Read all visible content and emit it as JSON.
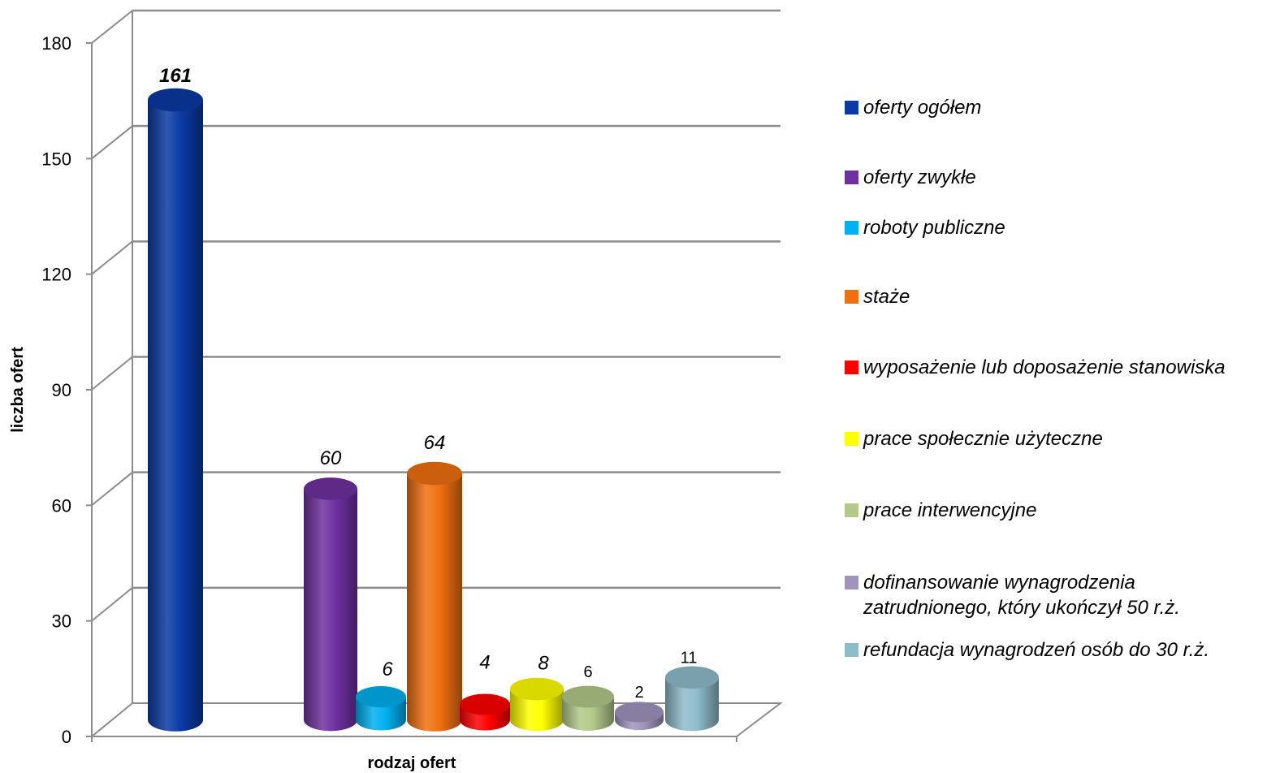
{
  "chart_data": {
    "type": "bar",
    "style": "3d-cylinder",
    "ylabel": "liczba ofert",
    "xlabel": "rodzaj ofert",
    "ylim": [
      0,
      180
    ],
    "yticks": [
      0,
      30,
      60,
      90,
      120,
      150,
      180
    ],
    "grid": true,
    "legend_position": "right",
    "series": [
      {
        "name": "oferty ogółem",
        "value": 161,
        "label": "161",
        "color": "#0a3aa4",
        "label_bold": true
      },
      {
        "name": "oferty zwykłe",
        "value": 60,
        "label": "60",
        "color": "#7030a0",
        "label_bold": false
      },
      {
        "name": "roboty publiczne",
        "value": 6,
        "label": "6",
        "color": "#00b0f0",
        "label_bold": false
      },
      {
        "name": "staże",
        "value": 64,
        "label": "64",
        "color": "#f07010",
        "label_bold": false
      },
      {
        "name": "wyposażenie lub doposażenie stanowiska",
        "value": 4,
        "label": "4",
        "color": "#ff0000",
        "label_bold": false
      },
      {
        "name": "prace społecznie użyteczne",
        "value": 8,
        "label": "8",
        "color": "#ffff00",
        "label_bold": false
      },
      {
        "name": "prace interwencyjne",
        "value": 6,
        "label": "6",
        "color": "#b3c98a",
        "label_bold": false
      },
      {
        "name": "dofinansowanie wynagrodzenia zatrudnionego, który ukończył 50 r.ż.",
        "value": 2,
        "label": "2",
        "color": "#a094bf",
        "label_bold": false
      },
      {
        "name": "refundacja wynagrodzeń osób do 30 r.ż.",
        "value": 11,
        "label": "11",
        "color": "#8fbccb",
        "label_bold": false
      }
    ]
  },
  "legend": {
    "items": [
      {
        "lines": [
          "oferty ogółem"
        ],
        "color": "#0a3aa4"
      },
      {
        "lines": [
          "oferty zwykłe"
        ],
        "color": "#7030a0"
      },
      {
        "lines": [
          "roboty publiczne"
        ],
        "color": "#00b0f0"
      },
      {
        "lines": [
          "staże"
        ],
        "color": "#f07010"
      },
      {
        "lines": [
          "wyposażenie lub doposażenie stanowiska"
        ],
        "color": "#ff0000"
      },
      {
        "lines": [
          "prace społecznie użyteczne"
        ],
        "color": "#ffff00"
      },
      {
        "lines": [
          "prace interwencyjne"
        ],
        "color": "#b3c98a"
      },
      {
        "lines": [
          "dofinansowanie wynagrodzenia",
          "zatrudnionego, który ukończył 50 r.ż."
        ],
        "color": "#a094bf"
      },
      {
        "lines": [
          "refundacja wynagrodzeń osób do 30 r.ż."
        ],
        "color": "#8fbccb"
      }
    ]
  }
}
